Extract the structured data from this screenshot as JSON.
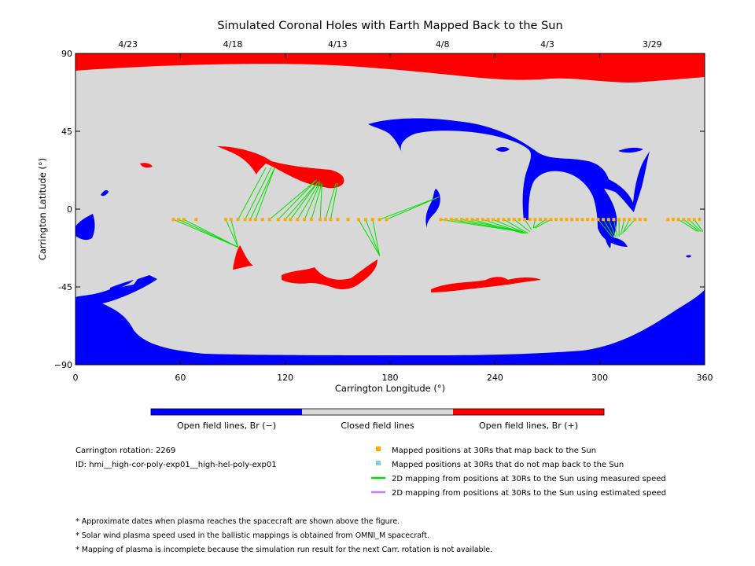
{
  "chart_data": {
    "type": "map",
    "title": "Simulated Coronal Holes with Earth Mapped Back to the Sun",
    "xlabel": "Carrington Longitude (°)",
    "ylabel": "Carrington Latitude (°)",
    "xlim": [
      0,
      360
    ],
    "ylim": [
      -90,
      90
    ],
    "x_ticks": [
      0,
      60,
      120,
      180,
      240,
      300,
      360
    ],
    "y_ticks": [
      {
        "value": 90,
        "label": "90"
      },
      {
        "value": 45,
        "label": "45"
      },
      {
        "value": 0,
        "label": "0"
      },
      {
        "value": -45,
        "label": "-45"
      },
      {
        "value": -90,
        "label": "−90"
      }
    ],
    "top_date_ticks": [
      {
        "lon": 30,
        "label": "4/23"
      },
      {
        "lon": 90,
        "label": "4/18"
      },
      {
        "lon": 150,
        "label": "4/13"
      },
      {
        "lon": 210,
        "label": "4/8"
      },
      {
        "lon": 270,
        "label": "4/3"
      },
      {
        "lon": 330,
        "label": "3/29"
      }
    ],
    "colors": {
      "open_negative": "#0000ff",
      "closed": "#d8d8d8",
      "open_positive": "#ff0000",
      "mapped_marker": "#ffaa00",
      "unmapped_marker": "#88c8f0",
      "measured_line": "#00e000",
      "estimated_line": "#c080ff"
    },
    "colorbar": {
      "labels": [
        "Open field lines, Br (−)",
        "Closed field lines",
        "Open field lines, Br (+)"
      ]
    },
    "mapped_positions_lat": -6,
    "mapped_positions_lon": [
      56,
      59,
      62,
      69,
      86,
      89,
      93,
      97,
      100,
      103,
      107,
      111,
      116,
      120,
      123,
      127,
      131,
      135,
      140,
      143,
      146,
      150,
      156,
      162,
      166,
      170,
      174,
      178,
      209,
      212,
      215,
      218,
      221,
      224,
      227,
      230,
      233,
      236,
      239,
      242,
      245,
      248,
      251,
      254,
      257,
      260,
      263,
      266,
      269,
      272,
      275,
      278,
      281,
      284,
      287,
      290,
      293,
      296,
      299,
      302,
      305,
      308,
      311,
      314,
      317,
      320,
      323,
      326,
      339,
      342,
      345,
      348,
      351,
      354,
      357
    ],
    "mapping_lines": [
      {
        "from": [
          56,
          -6
        ],
        "to": [
          93,
          -22
        ]
      },
      {
        "from": [
          59,
          -6
        ],
        "to": [
          93,
          -22
        ]
      },
      {
        "from": [
          62,
          -6
        ],
        "to": [
          93,
          -22
        ]
      },
      {
        "from": [
          86,
          -6
        ],
        "to": [
          93,
          -22
        ]
      },
      {
        "from": [
          89,
          -6
        ],
        "to": [
          93,
          -22
        ]
      },
      {
        "from": [
          93,
          -6
        ],
        "to": [
          109,
          24
        ]
      },
      {
        "from": [
          97,
          -6
        ],
        "to": [
          112,
          24
        ]
      },
      {
        "from": [
          100,
          -6
        ],
        "to": [
          114,
          24
        ]
      },
      {
        "from": [
          103,
          -6
        ],
        "to": [
          114,
          24
        ]
      },
      {
        "from": [
          111,
          -6
        ],
        "to": [
          138,
          17
        ]
      },
      {
        "from": [
          116,
          -6
        ],
        "to": [
          138,
          17
        ]
      },
      {
        "from": [
          120,
          -6
        ],
        "to": [
          139,
          16
        ]
      },
      {
        "from": [
          123,
          -6
        ],
        "to": [
          139,
          16
        ]
      },
      {
        "from": [
          127,
          -6
        ],
        "to": [
          140,
          16
        ]
      },
      {
        "from": [
          131,
          -6
        ],
        "to": [
          140,
          15
        ]
      },
      {
        "from": [
          135,
          -6
        ],
        "to": [
          141,
          15
        ]
      },
      {
        "from": [
          140,
          -6
        ],
        "to": [
          141,
          15
        ]
      },
      {
        "from": [
          143,
          -6
        ],
        "to": [
          149,
          15
        ]
      },
      {
        "from": [
          146,
          -6
        ],
        "to": [
          150,
          15
        ]
      },
      {
        "from": [
          162,
          -6
        ],
        "to": [
          174,
          -27
        ]
      },
      {
        "from": [
          166,
          -6
        ],
        "to": [
          174,
          -27
        ]
      },
      {
        "from": [
          170,
          -6
        ],
        "to": [
          174,
          -27
        ]
      },
      {
        "from": [
          174,
          -6
        ],
        "to": [
          208,
          7
        ]
      },
      {
        "from": [
          178,
          -6
        ],
        "to": [
          208,
          7
        ]
      },
      {
        "from": [
          209,
          -6
        ],
        "to": [
          255,
          -13
        ]
      },
      {
        "from": [
          215,
          -6
        ],
        "to": [
          255,
          -13
        ]
      },
      {
        "from": [
          221,
          -6
        ],
        "to": [
          256,
          -13
        ]
      },
      {
        "from": [
          227,
          -6
        ],
        "to": [
          256,
          -14
        ]
      },
      {
        "from": [
          233,
          -6
        ],
        "to": [
          257,
          -14
        ]
      },
      {
        "from": [
          239,
          -6
        ],
        "to": [
          258,
          -14
        ]
      },
      {
        "from": [
          245,
          -6
        ],
        "to": [
          259,
          -14
        ]
      },
      {
        "from": [
          251,
          -6
        ],
        "to": [
          260,
          -13
        ]
      },
      {
        "from": [
          257,
          -6
        ],
        "to": [
          261,
          -12
        ]
      },
      {
        "from": [
          263,
          -6
        ],
        "to": [
          262,
          -11
        ]
      },
      {
        "from": [
          269,
          -6
        ],
        "to": [
          262,
          -11
        ]
      },
      {
        "from": [
          272,
          -6
        ],
        "to": [
          263,
          -11
        ]
      },
      {
        "from": [
          299,
          -6
        ],
        "to": [
          307,
          -16
        ]
      },
      {
        "from": [
          302,
          -6
        ],
        "to": [
          308,
          -16
        ]
      },
      {
        "from": [
          305,
          -6
        ],
        "to": [
          309,
          -16
        ]
      },
      {
        "from": [
          308,
          -6
        ],
        "to": [
          310,
          -16
        ]
      },
      {
        "from": [
          311,
          -6
        ],
        "to": [
          311,
          -16
        ]
      },
      {
        "from": [
          314,
          -6
        ],
        "to": [
          312,
          -15
        ]
      },
      {
        "from": [
          317,
          -6
        ],
        "to": [
          313,
          -14
        ]
      },
      {
        "from": [
          320,
          -6
        ],
        "to": [
          314,
          -13
        ]
      },
      {
        "from": [
          345,
          -6
        ],
        "to": [
          356,
          -13
        ]
      },
      {
        "from": [
          348,
          -6
        ],
        "to": [
          357,
          -13
        ]
      },
      {
        "from": [
          351,
          -6
        ],
        "to": [
          358,
          -13
        ]
      },
      {
        "from": [
          354,
          -6
        ],
        "to": [
          359,
          -13
        ]
      }
    ]
  },
  "legend": {
    "rotation_text": "Carrington rotation: 2269",
    "id_text": "ID: hmi__high-cor-poly-exp01__high-hel-poly-exp01",
    "items": [
      {
        "label": "Mapped positions at 30Rs that map back to the Sun",
        "kind": "square",
        "color": "#ffaa00"
      },
      {
        "label": "Mapped positions at 30Rs that do not map back to the Sun",
        "kind": "square",
        "color": "#88c8f0"
      },
      {
        "label": "2D mapping from positions at 30Rs to the Sun using measured speed",
        "kind": "line",
        "color": "#00e000"
      },
      {
        "label": "2D mapping from positions at 30Rs to the Sun using estimated speed",
        "kind": "line",
        "color": "#c080ff"
      }
    ]
  },
  "notes": [
    "* Approximate dates when plasma reaches the spacecraft are shown above the figure.",
    "* Solar wind plasma speed used in the ballistic mappings is obtained from OMNI_M spacecraft.",
    "* Mapping of plasma is incomplete because the simulation run result for the next Carr. rotation is not available."
  ]
}
